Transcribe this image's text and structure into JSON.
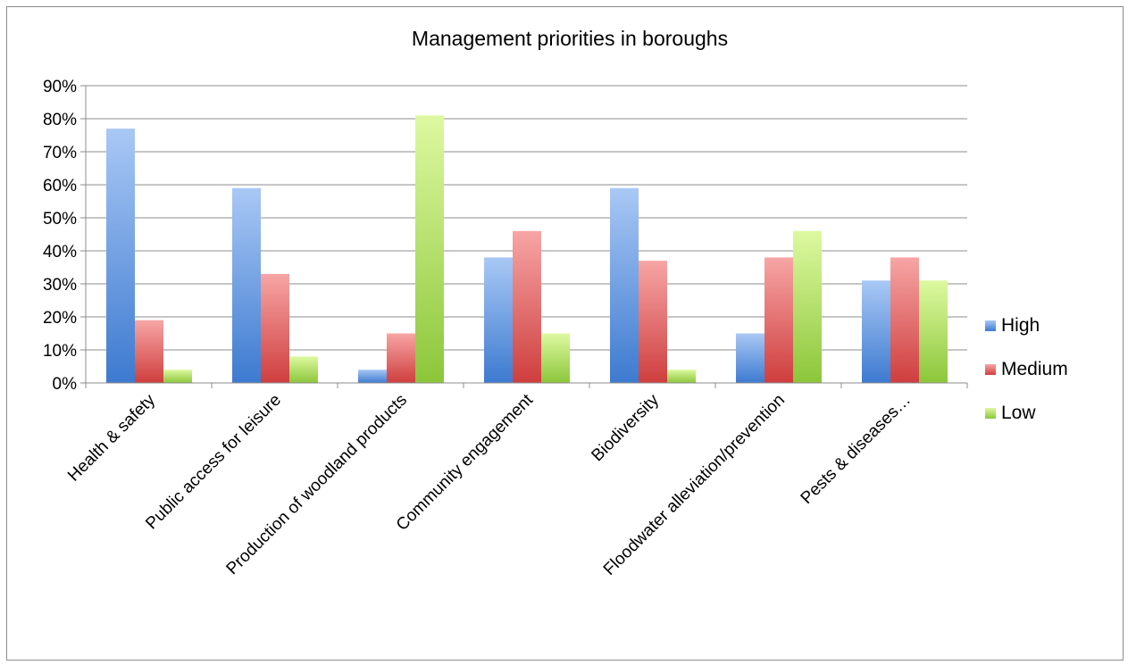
{
  "chart_data": {
    "type": "bar",
    "title": "Management priorities in boroughs",
    "xlabel": "",
    "ylabel": "",
    "ylim": [
      0,
      0.9
    ],
    "y_ticks": [
      "0%",
      "10%",
      "20%",
      "30%",
      "40%",
      "50%",
      "60%",
      "70%",
      "80%",
      "90%"
    ],
    "categories": [
      "Health & safety",
      "Public access for leisure",
      "Production of woodland products",
      "Community engagement",
      "Biodiversity",
      "Floodwater alleviation/prevention",
      "Pests & diseases…"
    ],
    "series": [
      {
        "name": "High",
        "values": [
          0.77,
          0.59,
          0.04,
          0.38,
          0.59,
          0.15,
          0.31
        ],
        "color_light": "#a9c8f5",
        "color_dark": "#3d7ad0"
      },
      {
        "name": "Medium",
        "values": [
          0.19,
          0.33,
          0.15,
          0.46,
          0.37,
          0.38,
          0.38
        ],
        "color_light": "#f7a5a5",
        "color_dark": "#cf3e3e"
      },
      {
        "name": "Low",
        "values": [
          0.04,
          0.08,
          0.81,
          0.15,
          0.04,
          0.46,
          0.31
        ],
        "color_light": "#ddf9a0",
        "color_dark": "#8cc63a"
      }
    ],
    "legend_position": "right",
    "grid": true
  }
}
